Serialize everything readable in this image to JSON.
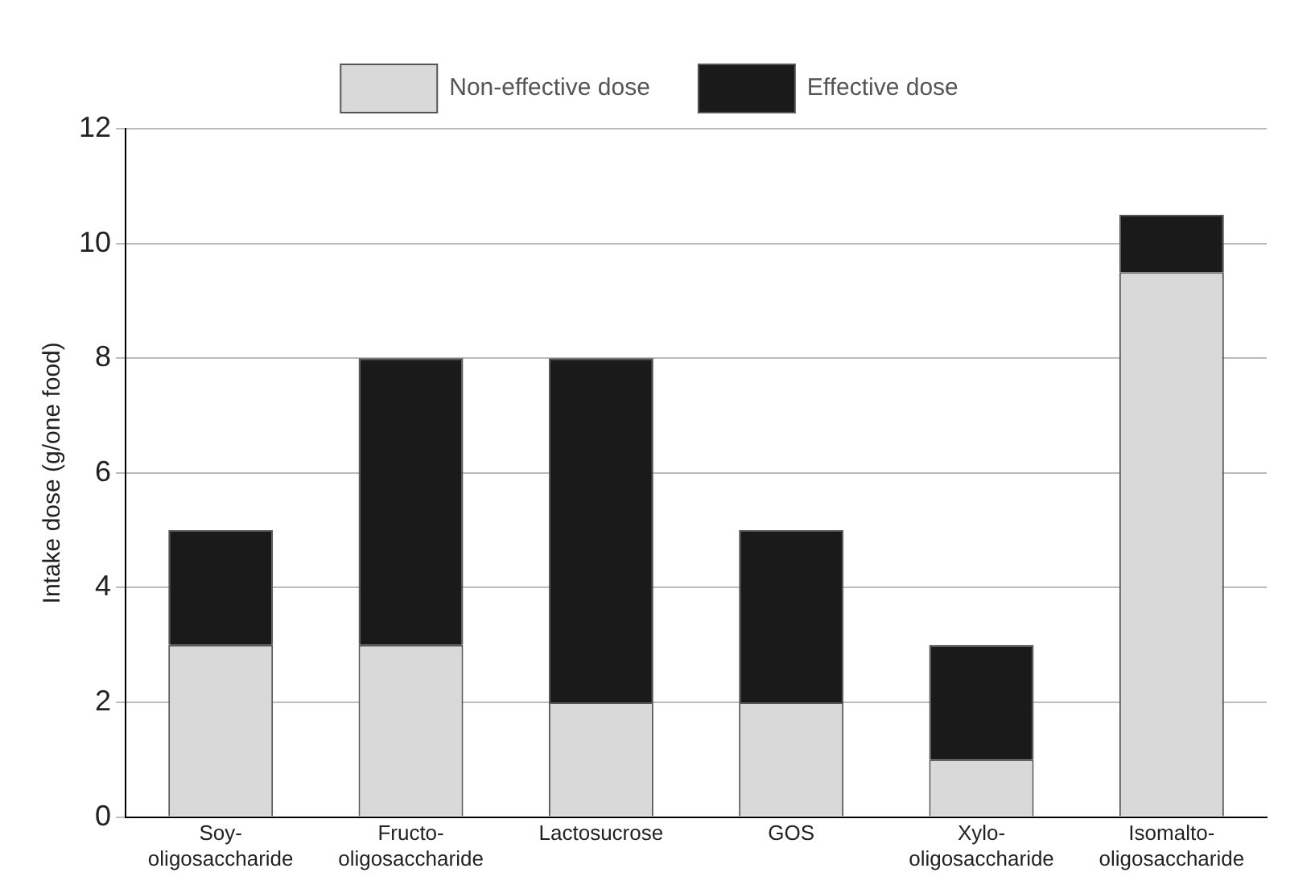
{
  "chart_data": {
    "type": "bar",
    "stacked": true,
    "ylabel": "Intake dose (g/one food)",
    "categories": [
      "Soy-oligosaccharide",
      "Fructo-oligosaccharide",
      "Lactosucrose",
      "GOS",
      "Xylo-oligosaccharide",
      "Isomalto-oligosaccharide"
    ],
    "series": [
      {
        "name": "Non-effective dose",
        "color": "#d9d9d9",
        "values": [
          3,
          3,
          2,
          2,
          1,
          9.5
        ]
      },
      {
        "name": "Effective dose",
        "color": "#1a1a1a",
        "values": [
          2,
          5,
          6,
          3,
          2,
          1
        ]
      }
    ],
    "ylim": [
      0,
      12
    ],
    "yticks": [
      0,
      2,
      4,
      6,
      8,
      10,
      12
    ],
    "grid": "y",
    "legend": "top"
  }
}
